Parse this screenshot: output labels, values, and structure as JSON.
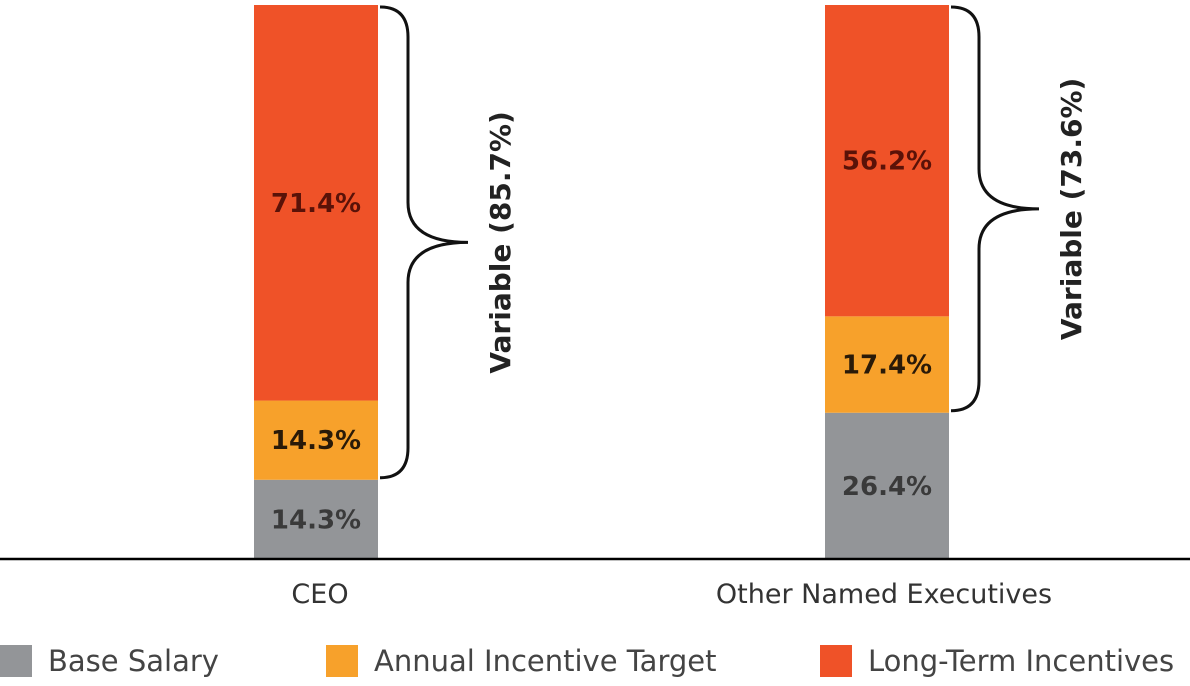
{
  "chart_data": {
    "type": "bar",
    "stacked": true,
    "categories": [
      "CEO",
      "Other Named Executives"
    ],
    "series": [
      {
        "name": "Base Salary",
        "values": [
          14.3,
          26.4
        ],
        "color": "#939598",
        "label_color": "#3a3a3a"
      },
      {
        "name": "Annual Incentive Target",
        "values": [
          14.3,
          17.4
        ],
        "color": "#f7a12b",
        "label_color": "#2a1a08"
      },
      {
        "name": "Long-Term Incentives",
        "values": [
          71.4,
          56.2
        ],
        "color": "#ef5228",
        "label_color": "#5a1208"
      }
    ],
    "data_labels": [
      [
        "14.3%",
        "26.4%"
      ],
      [
        "14.3%",
        "17.4%"
      ],
      [
        "71.4%",
        "56.2%"
      ]
    ],
    "annotations": [
      "Variable (85.7%)",
      "Variable (73.6%)"
    ],
    "ylim": [
      0,
      100
    ],
    "legend_position": "bottom",
    "grid": false
  }
}
